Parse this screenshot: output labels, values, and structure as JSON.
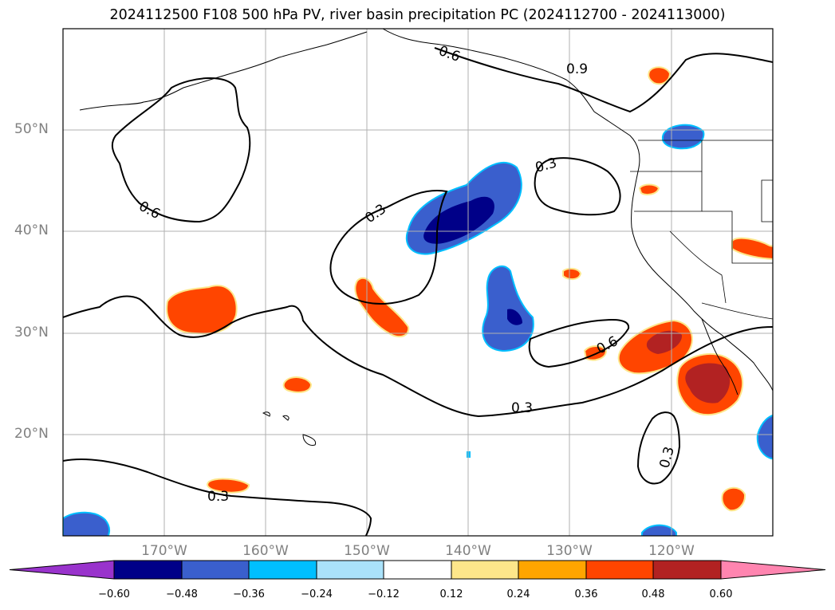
{
  "title": "2024112500 F108 500 hPa PV, river basin precipitation PC (2024112700 - 2024113000)",
  "lat_labels": [
    "50°N",
    "40°N",
    "30°N",
    "20°N"
  ],
  "lon_labels": [
    "170°W",
    "160°W",
    "150°W",
    "140°W",
    "130°W",
    "120°W"
  ],
  "contour_labels": [
    "0.6",
    "0.9",
    "0.3",
    "0.6",
    "0.3",
    "0.6",
    "0.3",
    "0.3",
    "0.3"
  ],
  "colorbar": {
    "ticks": [
      "−0.60",
      "−0.48",
      "−0.36",
      "−0.24",
      "−0.12",
      "0.12",
      "0.24",
      "0.36",
      "0.48",
      "0.60"
    ],
    "colors": [
      "#9933cc",
      "#000088",
      "#3a5fcd",
      "#00bfff",
      "#aae2fa",
      "#ffffff",
      "#fde68a",
      "#ffa500",
      "#ff4500",
      "#b22222",
      "#ff85b0"
    ]
  }
}
